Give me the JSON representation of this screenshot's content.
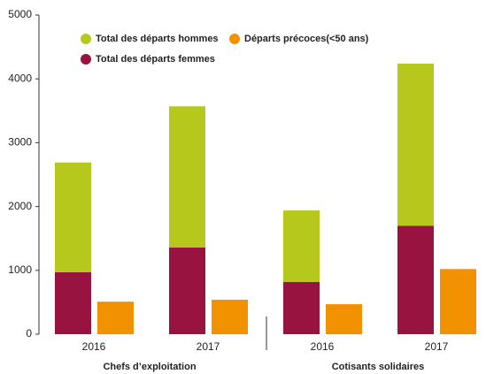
{
  "chart_data": {
    "type": "bar",
    "categories": [
      "2016",
      "2017",
      "2016",
      "2017"
    ],
    "groups": [
      "Chefs d’exploitation",
      "Cotisants solidaires"
    ],
    "series": [
      {
        "name": "Total des départs hommes",
        "color": "#b7c81c",
        "values": [
          1720,
          2210,
          1120,
          2540
        ]
      },
      {
        "name": "Départs précoces(<50 ans)",
        "color": "#f39200",
        "values": [
          510,
          540,
          470,
          1020
        ]
      },
      {
        "name": "Total des départs femmes",
        "color": "#98133f",
        "values": [
          970,
          1360,
          820,
          1700
        ]
      }
    ],
    "ylim": [
      0,
      5000
    ],
    "yticks": [
      0,
      1000,
      2000,
      3000,
      4000,
      5000
    ]
  }
}
